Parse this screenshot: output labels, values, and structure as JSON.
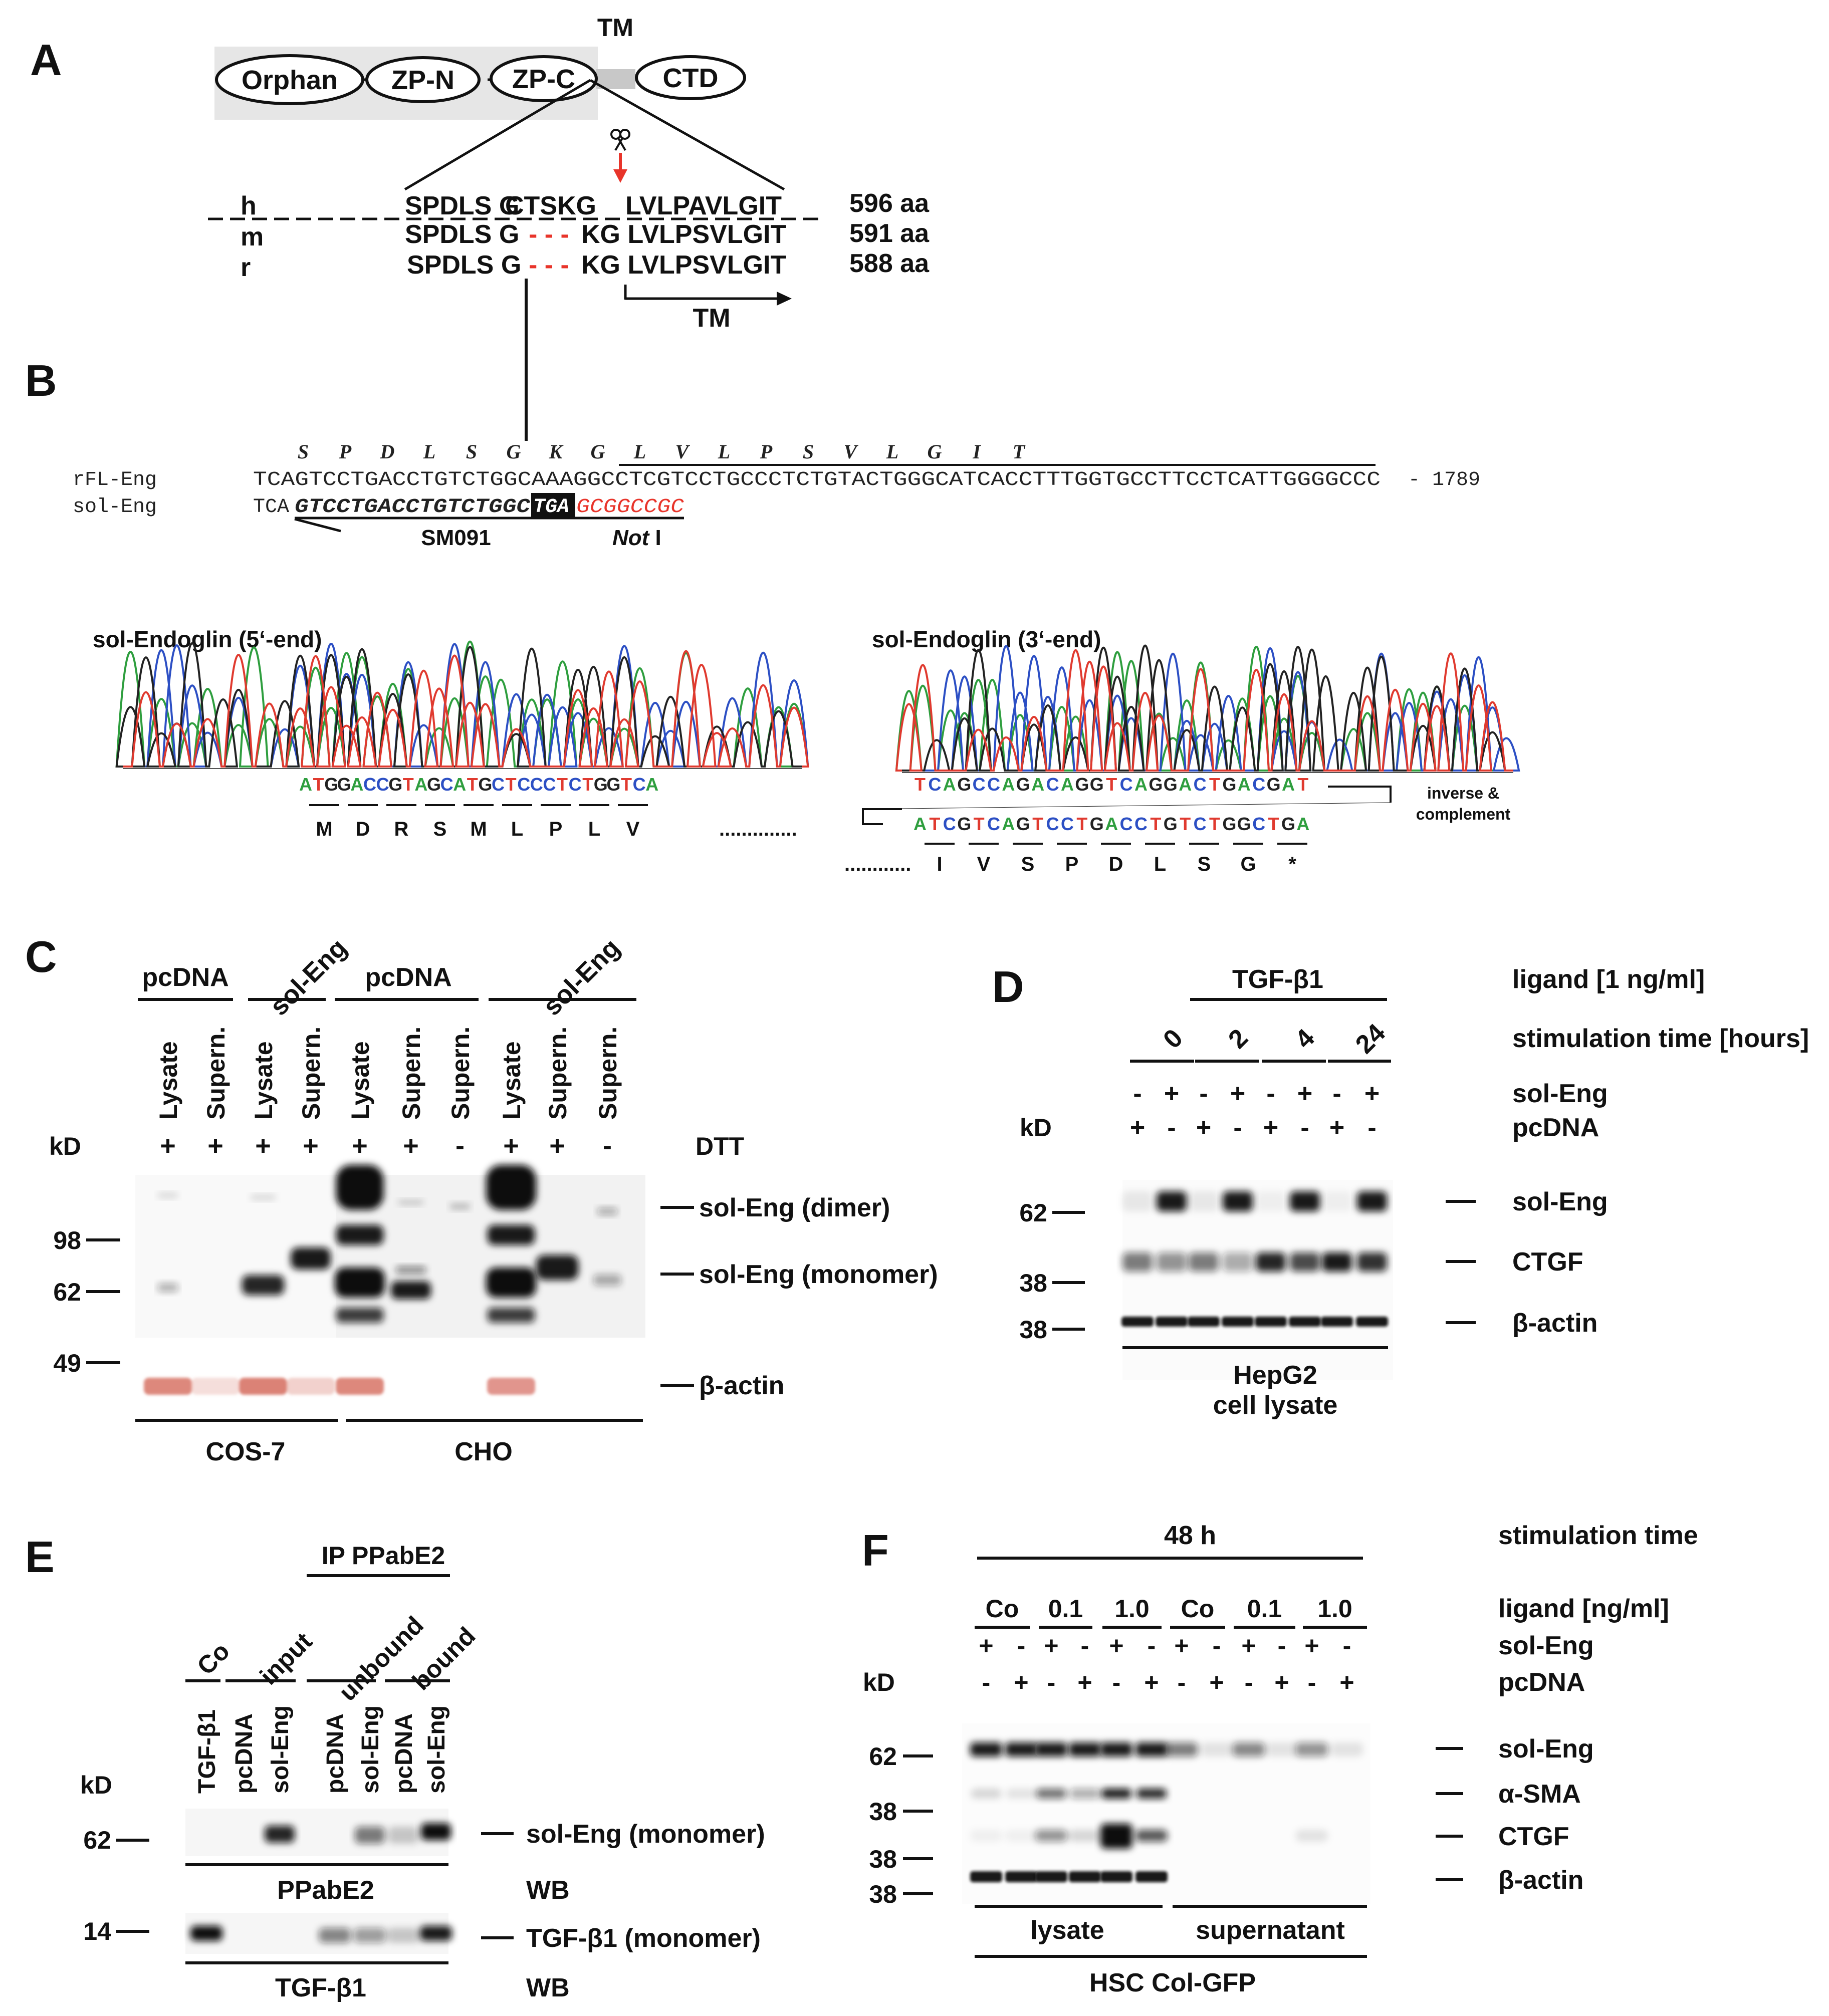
{
  "colors": {
    "red": "#e8342a",
    "A": "#2e9e3e",
    "C": "#2c4fc4",
    "G": "#222222",
    "T": "#e03a2f",
    "beta_actin_band": "#d97b6f",
    "gray_box": "#e6e6e6"
  },
  "panel_a": {
    "label": "A",
    "domains": [
      "Orphan",
      "ZP-N",
      "ZP-C",
      "CTD"
    ],
    "tm_top": "TM",
    "species": [
      {
        "code": "h",
        "seq1": "SPDLS G",
        "seq_mid": "CTSKG",
        "seq2": "LVLPAVLGIT",
        "length": "596 aa"
      },
      {
        "code": "m",
        "seq1": "SPDLS G",
        "seq_mid": "- - -",
        "seq2": "KG LVLPSVLGIT",
        "length": "591 aa"
      },
      {
        "code": "r",
        "seq1": "SPDLS G",
        "seq_mid": "- - -",
        "seq2": "KG LVLPSVLGIT",
        "length": "588 aa"
      }
    ],
    "tm_arrow": "TM",
    "cleavage_icon": "scissors-icon"
  },
  "panel_b": {
    "label": "B",
    "aa_letters": [
      "S",
      "P",
      "D",
      "L",
      "S",
      "G",
      "K",
      "G",
      "L",
      "V",
      "L",
      "P",
      "S",
      "V",
      "L",
      "G",
      "I",
      "T"
    ],
    "rfl_label": "rFL-Eng",
    "rfl_seq": "TCAGTCCTGACCTGTCTGGCAAAGGCCTCGTCCTGCCCTCTGTACTGGGCATCACCTTTGGTGCCTTCCTCATTGGGGCCC",
    "rfl_end": "- 1789",
    "sol_label": "sol-Eng",
    "sol_prefix": "TCA",
    "sol_primer": "GTCCTGACCTGTCTGGC",
    "sol_stop": "TGA",
    "sol_notI": "GCGGCCGC",
    "primer_label": "SM091",
    "notI_label_italic": "Not",
    "notI_label_roman": " I",
    "trace5_title": "sol-Endoglin (5‘-end)",
    "trace5_bases": "ATGGACCGTAGCATGCTCCCTCTGGTCA",
    "trace5_aa": [
      "M",
      "D",
      "R",
      "S",
      "M",
      "L",
      "P",
      "L",
      "V"
    ],
    "trace5_dots": "..............",
    "trace3_title": "sol-Endoglin (3‘-end)",
    "trace3_bases": "TCAGCCAGACAGGTCAGGACTGACGAT",
    "trace3_inv_bases": "ATCGTCAGTCCTGACCTGTCTGGCTGA",
    "trace3_aa": [
      "I",
      "V",
      "S",
      "P",
      "D",
      "L",
      "S",
      "G",
      "*"
    ],
    "trace3_dots": "............",
    "inverse_label_1": "inverse &",
    "inverse_label_2": "complement"
  },
  "panel_c": {
    "label": "C",
    "group_labels": [
      "pcDNA",
      "sol-Eng",
      "pcDNA",
      "sol-Eng"
    ],
    "lanes": [
      "Lysate",
      "Supern.",
      "Lysate",
      "Supern.",
      "Lysate",
      "Supern.",
      "Supern.",
      "Lysate",
      "Supern.",
      "Supern."
    ],
    "dtt_signs": [
      "+",
      "+",
      "+",
      "+",
      "+",
      "+",
      "-",
      "+",
      "+",
      "-"
    ],
    "dtt_label": "DTT",
    "kd_label": "kD",
    "markers": [
      "98",
      "62",
      "49"
    ],
    "band_labels": [
      "sol-Eng (dimer)",
      "sol-Eng (monomer)",
      "β-actin"
    ],
    "cell_lines": [
      "COS-7",
      "CHO"
    ]
  },
  "panel_d": {
    "label": "D",
    "ligand": "TGF-β1",
    "ligand_label": "ligand [1 ng/ml]",
    "times": [
      "0",
      "2",
      "4",
      "24"
    ],
    "time_label": "stimulation time [hours]",
    "sol_signs": [
      "-",
      "+",
      "-",
      "+",
      "-",
      "+",
      "-",
      "+"
    ],
    "pc_signs": [
      "+",
      "-",
      "+",
      "-",
      "+",
      "-",
      "+",
      "-"
    ],
    "sol_label": "sol-Eng",
    "pc_label": "pcDNA",
    "kd_label": "kD",
    "markers": [
      "62",
      "38",
      "38"
    ],
    "band_labels": [
      "sol-Eng",
      "CTGF",
      "β-actin"
    ],
    "footer_1": "HepG2",
    "footer_2": "cell lysate"
  },
  "panel_e": {
    "label": "E",
    "ip_label": "IP PPabE2",
    "group_labels": [
      "Co",
      "input",
      "unbound",
      "bound"
    ],
    "lanes": [
      "TGF-β1",
      "pcDNA",
      "sol-Eng",
      "pcDNA",
      "sol-Eng",
      "pcDNA",
      "sol-Eng"
    ],
    "kd_label": "kD",
    "markers": [
      "62",
      "14"
    ],
    "band_labels": [
      "sol-Eng (monomer)",
      "TGF-β1 (monomer)"
    ],
    "antibodies": [
      "PPabE2",
      "TGF-β1"
    ],
    "wb_label": "WB"
  },
  "panel_f": {
    "label": "F",
    "time": "48 h",
    "time_label": "stimulation time",
    "ligands": [
      "Co",
      "0.1",
      "1.0",
      "Co",
      "0.1",
      "1.0"
    ],
    "ligand_label": "ligand [ng/ml]",
    "sol_signs": [
      "+",
      "-",
      "+",
      "-",
      "+",
      "-",
      "+",
      "-",
      "+",
      "-",
      "+",
      "-"
    ],
    "pc_signs": [
      "-",
      "+",
      "-",
      "+",
      "-",
      "+",
      "-",
      "+",
      "-",
      "+",
      "-",
      "+"
    ],
    "sol_label": "sol-Eng",
    "pc_label": "pcDNA",
    "kd_label": "kD",
    "markers": [
      "62",
      "38",
      "38",
      "38"
    ],
    "band_labels": [
      "sol-Eng",
      "α-SMA",
      "CTGF",
      "β-actin"
    ],
    "fractions": [
      "lysate",
      "supernatant"
    ],
    "footer": "HSC Col-GFP"
  }
}
